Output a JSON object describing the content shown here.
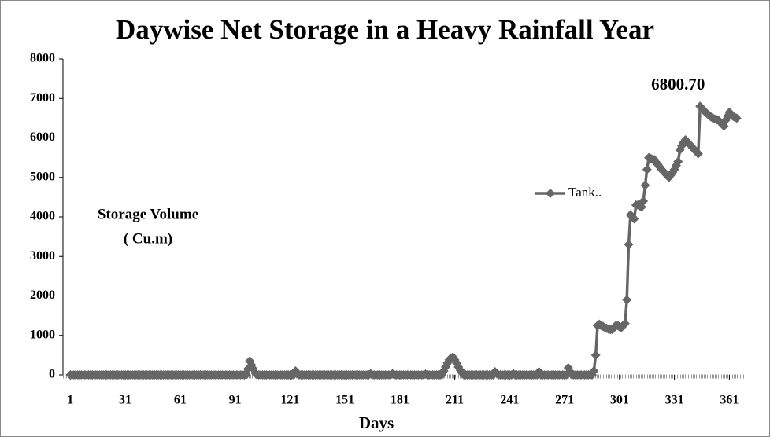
{
  "chart_data": {
    "type": "line",
    "title": "Daywise Net Storage in a Heavy Rainfall Year",
    "xlabel": "Days",
    "ylabel": [
      "Storage Volume",
      "( Cu.m)"
    ],
    "x": [
      1,
      2,
      3,
      4,
      5,
      6,
      7,
      8,
      9,
      10,
      11,
      12,
      13,
      14,
      15,
      16,
      17,
      18,
      19,
      20,
      21,
      22,
      23,
      24,
      25,
      26,
      27,
      28,
      29,
      30,
      31,
      32,
      33,
      34,
      35,
      36,
      37,
      38,
      39,
      40,
      41,
      42,
      43,
      44,
      45,
      46,
      47,
      48,
      49,
      50,
      51,
      52,
      53,
      54,
      55,
      56,
      57,
      58,
      59,
      60,
      61,
      62,
      63,
      64,
      65,
      66,
      67,
      68,
      69,
      70,
      71,
      72,
      73,
      74,
      75,
      76,
      77,
      78,
      79,
      80,
      81,
      82,
      83,
      84,
      85,
      86,
      87,
      88,
      89,
      90,
      91,
      92,
      93,
      94,
      95,
      96,
      97,
      98,
      99,
      100,
      101,
      102,
      103,
      104,
      105,
      106,
      107,
      108,
      109,
      110,
      111,
      112,
      113,
      114,
      115,
      116,
      117,
      118,
      119,
      120,
      121,
      122,
      123,
      124,
      125,
      126,
      127,
      128,
      129,
      130,
      131,
      132,
      133,
      134,
      135,
      136,
      137,
      138,
      139,
      140,
      141,
      142,
      143,
      144,
      145,
      146,
      147,
      148,
      149,
      150,
      151,
      152,
      153,
      154,
      155,
      156,
      157,
      158,
      159,
      160,
      161,
      162,
      163,
      164,
      165,
      166,
      167,
      168,
      169,
      170,
      171,
      172,
      173,
      174,
      175,
      176,
      177,
      178,
      179,
      180,
      181,
      182,
      183,
      184,
      185,
      186,
      187,
      188,
      189,
      190,
      191,
      192,
      193,
      194,
      195,
      196,
      197,
      198,
      199,
      200,
      201,
      202,
      203,
      204,
      205,
      206,
      207,
      208,
      209,
      210,
      211,
      212,
      213,
      214,
      215,
      216,
      217,
      218,
      219,
      220,
      221,
      222,
      223,
      224,
      225,
      226,
      227,
      228,
      229,
      230,
      231,
      232,
      233,
      234,
      235,
      236,
      237,
      238,
      239,
      240,
      241,
      242,
      243,
      244,
      245,
      246,
      247,
      248,
      249,
      250,
      251,
      252,
      253,
      254,
      255,
      256,
      257,
      258,
      259,
      260,
      261,
      262,
      263,
      264,
      265,
      266,
      267,
      268,
      269,
      270,
      271,
      272,
      273,
      274,
      275,
      276,
      277,
      278,
      279,
      280,
      281,
      282,
      283,
      284,
      285,
      286,
      287,
      288,
      289,
      290,
      291,
      292,
      293,
      294,
      295,
      296,
      297,
      298,
      299,
      300,
      301,
      302,
      303,
      304,
      305,
      306,
      307,
      308,
      309,
      310,
      311,
      312,
      313,
      314,
      315,
      316,
      317,
      318,
      319,
      320,
      321,
      322,
      323,
      324,
      325,
      326,
      327,
      328,
      329,
      330,
      331,
      332,
      333,
      334,
      335,
      336,
      337,
      338,
      339,
      340,
      341,
      342,
      343,
      344,
      345,
      346,
      347,
      348,
      349,
      350,
      351,
      352,
      353,
      354,
      355,
      356,
      357,
      358,
      359,
      360,
      361,
      362,
      363,
      364,
      365
    ],
    "series": [
      {
        "name": "Tank..",
        "color": "#666666",
        "values": [
          0,
          0,
          0,
          0,
          0,
          0,
          0,
          0,
          0,
          0,
          0,
          0,
          0,
          0,
          0,
          0,
          0,
          0,
          0,
          0,
          0,
          0,
          0,
          0,
          0,
          0,
          0,
          0,
          0,
          0,
          0,
          0,
          0,
          0,
          0,
          0,
          0,
          0,
          0,
          0,
          0,
          0,
          0,
          0,
          0,
          0,
          0,
          0,
          0,
          0,
          0,
          0,
          0,
          0,
          0,
          0,
          0,
          0,
          0,
          0,
          0,
          0,
          0,
          0,
          0,
          0,
          0,
          0,
          0,
          0,
          0,
          0,
          0,
          0,
          0,
          0,
          0,
          0,
          0,
          0,
          0,
          0,
          0,
          0,
          0,
          0,
          0,
          0,
          0,
          0,
          0,
          0,
          0,
          0,
          0,
          0,
          0,
          150,
          350,
          250,
          150,
          50,
          0,
          0,
          0,
          0,
          0,
          0,
          0,
          0,
          0,
          0,
          0,
          0,
          0,
          0,
          0,
          0,
          0,
          0,
          0,
          0,
          0,
          100,
          30,
          0,
          0,
          0,
          0,
          0,
          0,
          0,
          0,
          0,
          0,
          0,
          0,
          0,
          0,
          0,
          0,
          0,
          0,
          0,
          0,
          0,
          0,
          0,
          0,
          0,
          0,
          0,
          0,
          0,
          0,
          0,
          0,
          0,
          0,
          0,
          0,
          0,
          0,
          0,
          30,
          0,
          0,
          0,
          0,
          0,
          0,
          0,
          0,
          0,
          0,
          0,
          30,
          0,
          0,
          0,
          0,
          0,
          0,
          0,
          0,
          0,
          0,
          0,
          0,
          0,
          0,
          0,
          0,
          0,
          20,
          0,
          0,
          0,
          0,
          0,
          0,
          0,
          0,
          0,
          100,
          200,
          300,
          380,
          430,
          450,
          380,
          300,
          200,
          120,
          50,
          0,
          0,
          0,
          0,
          0,
          0,
          0,
          0,
          0,
          0,
          0,
          0,
          0,
          0,
          0,
          0,
          0,
          80,
          40,
          0,
          0,
          0,
          0,
          0,
          0,
          0,
          0,
          30,
          0,
          0,
          0,
          0,
          0,
          0,
          0,
          0,
          0,
          0,
          0,
          0,
          0,
          80,
          0,
          0,
          0,
          0,
          0,
          0,
          0,
          0,
          0,
          0,
          0,
          0,
          0,
          0,
          0,
          180,
          80,
          0,
          0,
          0,
          0,
          0,
          0,
          0,
          0,
          0,
          0,
          0,
          0,
          100,
          500,
          1250,
          1280,
          1250,
          1230,
          1200,
          1180,
          1160,
          1150,
          1150,
          1200,
          1250,
          1250,
          1220,
          1200,
          1250,
          1300,
          1900,
          3300,
          4050,
          4000,
          3950,
          4300,
          4300,
          4280,
          4250,
          4400,
          4800,
          5200,
          5500,
          5480,
          5460,
          5450,
          5380,
          5320,
          5260,
          5200,
          5150,
          5100,
          5050,
          5000,
          5060,
          5130,
          5200,
          5300,
          5400,
          5700,
          5800,
          5880,
          5950,
          5900,
          5850,
          5800,
          5750,
          5700,
          5650,
          5600,
          6800.7,
          6750,
          6700,
          6650,
          6610,
          6570,
          6530,
          6500,
          6480,
          6460,
          6450,
          6400,
          6350,
          6300,
          6450,
          6550,
          6650,
          6600,
          6550,
          6520,
          6500
        ],
        "value_labels": [
          null,
          null,
          null,
          null,
          null,
          null,
          null,
          null,
          null,
          null,
          null,
          null,
          null,
          null,
          null,
          null,
          null,
          null,
          null,
          null,
          null,
          null,
          null,
          null,
          null,
          null,
          null,
          null,
          null,
          null,
          null,
          null,
          null,
          null,
          null,
          null,
          null,
          null,
          null,
          null,
          null,
          null,
          null,
          null,
          null,
          null,
          null,
          null,
          null,
          null,
          null,
          null,
          null,
          null,
          null,
          null,
          null,
          null,
          null,
          null,
          null,
          null,
          null,
          null,
          null,
          null,
          null,
          null,
          null,
          null,
          null,
          null,
          null,
          null,
          null,
          null,
          null,
          null,
          null,
          null,
          null,
          null,
          null,
          null,
          null,
          null,
          null,
          null,
          null,
          null,
          null,
          null,
          null,
          null,
          null,
          null,
          null,
          null,
          null,
          null,
          null,
          null,
          null,
          null,
          null,
          null,
          null,
          null,
          null,
          null,
          null,
          null,
          null,
          null,
          null,
          null,
          null,
          null,
          null,
          null,
          null,
          null,
          null,
          null,
          null,
          null,
          null,
          null,
          null,
          null,
          null,
          null,
          null,
          null,
          null,
          null,
          null,
          null,
          null,
          null,
          null,
          null,
          null,
          null,
          null,
          null,
          null,
          null,
          null,
          null,
          null,
          null,
          null,
          null,
          null,
          null,
          null,
          null,
          null,
          null,
          null,
          null,
          null,
          null,
          null,
          null,
          null,
          null,
          null,
          null,
          null,
          null,
          null,
          null,
          null,
          null,
          null,
          null,
          null,
          null,
          null,
          null,
          null,
          null,
          null,
          null,
          null,
          null,
          null,
          null,
          null,
          null,
          null,
          null,
          null,
          null,
          null,
          null,
          null,
          null,
          null,
          null,
          null,
          null,
          null,
          null,
          null,
          null,
          null,
          null,
          null,
          null,
          null,
          null,
          null,
          null,
          null,
          null,
          null,
          null,
          null,
          null,
          null,
          null,
          null,
          null,
          null,
          null,
          null,
          null,
          null,
          null,
          null,
          null,
          null,
          null,
          null,
          null,
          null,
          null,
          null,
          null,
          null,
          null,
          null,
          null,
          null,
          null,
          null,
          null,
          null,
          null,
          null,
          null,
          null,
          null,
          null,
          null,
          null,
          null,
          null,
          null,
          null,
          null,
          null,
          null,
          null,
          null,
          null,
          null,
          null,
          null,
          null,
          null,
          null,
          null,
          null,
          null,
          null,
          null,
          null,
          null,
          null,
          null,
          null,
          null,
          null,
          null,
          null,
          null,
          null,
          null,
          null,
          null,
          null,
          null,
          null,
          null,
          null,
          null,
          null,
          null,
          null,
          null,
          null,
          null,
          null,
          null,
          null,
          null,
          null,
          null,
          null,
          null,
          null,
          null,
          null,
          null,
          null,
          null,
          null,
          null,
          null,
          null,
          null,
          null,
          null,
          null,
          null,
          null,
          null,
          null,
          null,
          null,
          null,
          null,
          null,
          null,
          null,
          null,
          null,
          null,
          null,
          null,
          "6800.70",
          null,
          null,
          null,
          null,
          null,
          null,
          null,
          null,
          null,
          null,
          null,
          null,
          null,
          null,
          null,
          null,
          null,
          null,
          null,
          null
        ]
      }
    ],
    "xlim": [
      -3,
      369
    ],
    "xticks": [
      1,
      31,
      61,
      91,
      121,
      151,
      181,
      211,
      241,
      271,
      301,
      331,
      361
    ],
    "ylim": [
      0,
      8000
    ],
    "yticks": [
      0,
      1000,
      2000,
      3000,
      4000,
      5000,
      6000,
      7000,
      8000
    ],
    "grid": false,
    "legend": "upper-right"
  }
}
